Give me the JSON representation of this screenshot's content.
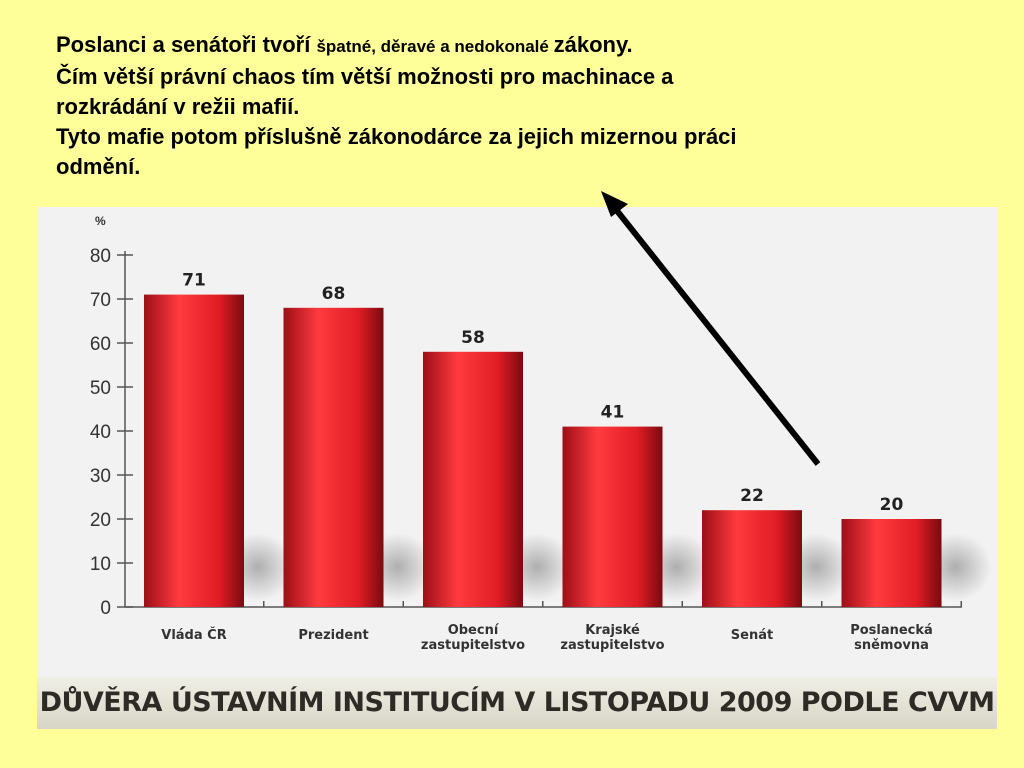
{
  "intro": {
    "line1_a": "Poslanci a senátoři tvoří ",
    "line1_b": "špatné, děravé a nedokonalé ",
    "line1_c": "zákony.",
    "line2": "Čím větší právní chaos tím větší možnosti pro machinace a",
    "line3": "rozkrádání  v režii mafií.",
    "line4": "Tyto mafie potom  příslušně zákonodárce za jejich mizernou práci",
    "line5": "odmění."
  },
  "chart_data": {
    "type": "bar",
    "title": "DŮVĚRA ÚSTAVNÍM INSTITUCÍM V LISTOPADU 2009 PODLE CVVM",
    "ylabel": "%",
    "ylim": [
      0,
      80
    ],
    "yticks": [
      0,
      10,
      20,
      30,
      40,
      50,
      60,
      70,
      80
    ],
    "categories": [
      [
        "Vláda ČR"
      ],
      [
        "Prezident"
      ],
      [
        "Obecní",
        "zastupitelstvo"
      ],
      [
        "Krajské",
        "zastupitelstvo"
      ],
      [
        "Senát"
      ],
      [
        "Poslanecká",
        "sněmovna"
      ]
    ],
    "values": [
      71,
      68,
      58,
      41,
      22,
      20
    ],
    "bar_color": "#e8202a",
    "grid": false
  }
}
